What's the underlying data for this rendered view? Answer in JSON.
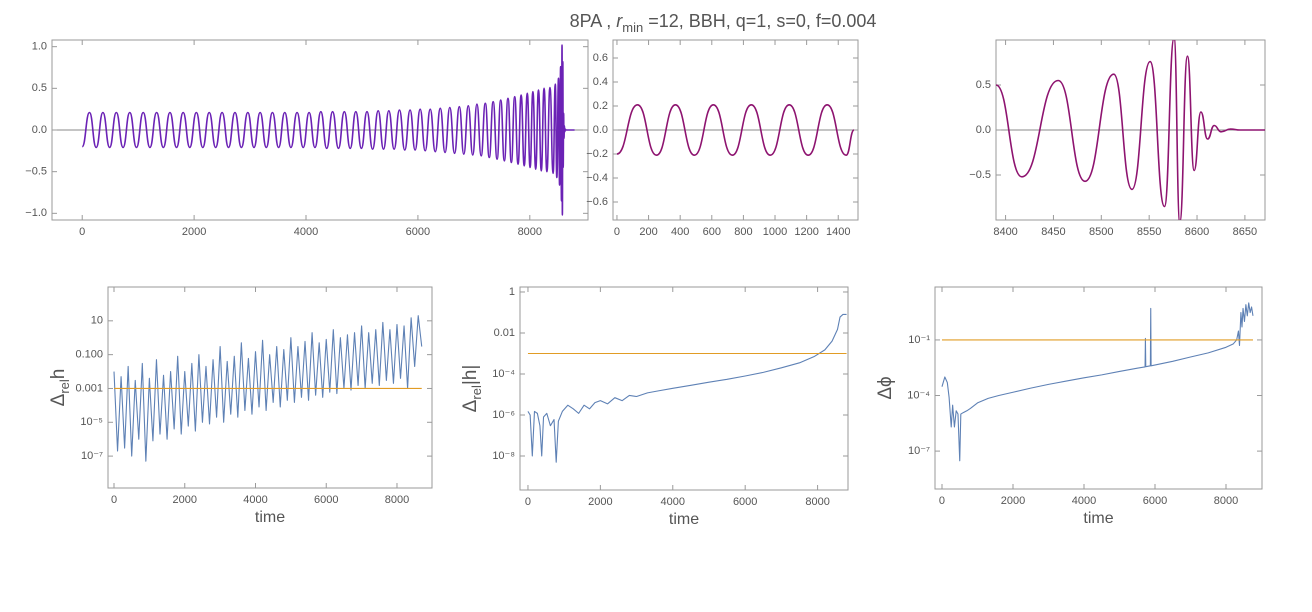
{
  "title": {
    "before": "8PA , ",
    "symbol": "r",
    "subscript": "min",
    "after": " =12, BBH, q=1, s=0, f=0.004"
  },
  "chart_data": [
    {
      "type": "line",
      "interpolation": "smooth",
      "xlim": [
        -540,
        9040
      ],
      "ylim": [
        -1.08,
        1.08
      ],
      "xticks": [
        0,
        2000,
        4000,
        6000,
        8000
      ],
      "yticks": [
        {
          "value": -1,
          "label": "−1.0"
        },
        {
          "value": -0.5,
          "label": "−0.5"
        },
        {
          "value": 0,
          "label": "0.0"
        },
        {
          "value": 0.5,
          "label": "0.5"
        },
        {
          "value": 1,
          "label": "1.0"
        }
      ],
      "series": [
        {
          "color": "#6b22b5",
          "x": [
            0,
            130,
            250,
            370,
            490,
            610,
            730,
            850,
            970,
            1090,
            1210,
            1330,
            1450,
            1568,
            1686,
            1804,
            1922,
            2040,
            2155,
            2270,
            2385,
            2500,
            2615,
            2730,
            2845,
            2960,
            3070,
            3180,
            3290,
            3400,
            3510,
            3620,
            3730,
            3840,
            3950,
            4055,
            4160,
            4265,
            4370,
            4475,
            4580,
            4685,
            4790,
            4890,
            4990,
            5090,
            5190,
            5290,
            5385,
            5480,
            5575,
            5670,
            5765,
            5860,
            5950,
            6040,
            6130,
            6220,
            6310,
            6400,
            6485,
            6570,
            6655,
            6740,
            6820,
            6900,
            6980,
            7055,
            7130,
            7205,
            7275,
            7345,
            7415,
            7480,
            7545,
            7610,
            7670,
            7730,
            7790,
            7845,
            7900,
            7955,
            8005,
            8055,
            8105,
            8155,
            8205,
            8255,
            8305,
            8360,
            8417,
            8455,
            8483,
            8513,
            8532,
            8551,
            8566,
            8576,
            8582,
            8590,
            8597,
            8604,
            8611,
            8618,
            8625,
            8635,
            8645,
            8800
          ],
          "values": [
            -0.2,
            0.21,
            -0.21,
            0.21,
            -0.21,
            0.21,
            -0.21,
            0.21,
            -0.21,
            0.21,
            -0.21,
            0.21,
            -0.21,
            0.21,
            -0.21,
            0.21,
            -0.21,
            0.21,
            -0.21,
            0.21,
            -0.21,
            0.21,
            -0.21,
            0.21,
            -0.21,
            0.21,
            -0.21,
            0.21,
            -0.21,
            0.21,
            -0.21,
            0.21,
            -0.21,
            0.21,
            -0.21,
            0.21,
            -0.21,
            0.22,
            -0.22,
            0.22,
            -0.22,
            0.22,
            -0.22,
            0.22,
            -0.22,
            0.22,
            -0.23,
            0.23,
            -0.23,
            0.23,
            -0.23,
            0.24,
            -0.24,
            0.24,
            -0.24,
            0.25,
            -0.25,
            0.25,
            -0.26,
            0.26,
            -0.27,
            0.27,
            -0.28,
            0.28,
            -0.29,
            0.29,
            -0.3,
            0.31,
            -0.31,
            0.32,
            -0.33,
            0.34,
            -0.35,
            0.36,
            -0.37,
            0.38,
            -0.39,
            0.4,
            -0.41,
            0.42,
            -0.43,
            0.44,
            -0.45,
            0.46,
            -0.47,
            0.48,
            -0.49,
            0.5,
            -0.5,
            0.51,
            -0.52,
            0.55,
            -0.57,
            0.62,
            -0.66,
            0.76,
            -0.85,
            1.02,
            -1.02,
            0.82,
            -0.45,
            0.2,
            -0.1,
            0.05,
            -0.02,
            0.01,
            0,
            0
          ]
        }
      ]
    },
    {
      "type": "line",
      "interpolation": "smooth",
      "xlim": [
        -25,
        1525
      ],
      "ylim": [
        -0.75,
        0.75
      ],
      "xticks": [
        0,
        200,
        400,
        600,
        800,
        1000,
        1200,
        1400
      ],
      "yticks": [
        {
          "value": -0.6,
          "label": "−0.6"
        },
        {
          "value": -0.4,
          "label": "−0.4"
        },
        {
          "value": -0.2,
          "label": "−0.2"
        },
        {
          "value": 0,
          "label": "0.0"
        },
        {
          "value": 0.2,
          "label": "0.2"
        },
        {
          "value": 0.4,
          "label": "0.4"
        },
        {
          "value": 0.6,
          "label": "0.6"
        }
      ],
      "series": [
        {
          "color": "#8e1470",
          "x": [
            0,
            130,
            250,
            370,
            490,
            610,
            730,
            850,
            970,
            1090,
            1210,
            1330,
            1450,
            1500
          ],
          "values": [
            -0.2,
            0.21,
            -0.21,
            0.21,
            -0.21,
            0.21,
            -0.21,
            0.21,
            -0.21,
            0.21,
            -0.21,
            0.21,
            -0.21,
            0
          ]
        }
      ]
    },
    {
      "type": "line",
      "interpolation": "smooth",
      "xlim": [
        8390,
        8671
      ],
      "ylim": [
        -1,
        1
      ],
      "xticks": [
        8400,
        8450,
        8500,
        8550,
        8600,
        8650
      ],
      "yticks": [
        {
          "value": -0.5,
          "label": "−0.5"
        },
        {
          "value": 0,
          "label": "0.0"
        },
        {
          "value": 0.5,
          "label": "0.5"
        }
      ],
      "series": [
        {
          "color": "#8e1470",
          "x": [
            8390,
            8417,
            8455,
            8483,
            8513,
            8532,
            8551,
            8566,
            8576,
            8582,
            8590,
            8597,
            8604,
            8611,
            8618,
            8625,
            8635,
            8645,
            8671
          ],
          "values": [
            0.5,
            -0.52,
            0.55,
            -0.57,
            0.62,
            -0.66,
            0.76,
            -0.85,
            1.02,
            -1.02,
            0.82,
            -0.45,
            0.2,
            -0.1,
            0.05,
            -0.02,
            0.01,
            0,
            0
          ]
        }
      ]
    },
    {
      "type": "line",
      "log_y": true,
      "xlabel": "time",
      "ylabel": {
        "symbol": "Δ",
        "subscript": "rel",
        "after": "h"
      },
      "xlim": [
        -170,
        8990
      ],
      "ylim": [
        1.3e-09,
        1000
      ],
      "xticks": [
        0,
        2000,
        4000,
        6000,
        8000
      ],
      "yticks": [
        10,
        {
          "value": 0.1,
          "label": "0.100"
        },
        0.001,
        {
          "value": 1e-05,
          "label": "10⁻⁵"
        },
        {
          "value": 1e-07,
          "label": "10⁻⁷"
        }
      ],
      "series": [
        {
          "color": "#5e81b5",
          "x": [
            0,
            100,
            200,
            300,
            400,
            500,
            600,
            700,
            800,
            900,
            1000,
            1100,
            1200,
            1300,
            1400,
            1500,
            1600,
            1700,
            1800,
            1900,
            2000,
            2100,
            2200,
            2300,
            2400,
            2500,
            2600,
            2700,
            2800,
            2900,
            3000,
            3100,
            3200,
            3300,
            3400,
            3500,
            3600,
            3700,
            3800,
            3900,
            4000,
            4100,
            4200,
            4300,
            4400,
            4500,
            4600,
            4700,
            4800,
            4900,
            5000,
            5100,
            5200,
            5300,
            5400,
            5500,
            5600,
            5700,
            5800,
            5900,
            6000,
            6100,
            6200,
            6300,
            6400,
            6500,
            6600,
            6700,
            6800,
            6900,
            7000,
            7100,
            7200,
            7300,
            7400,
            7500,
            7600,
            7700,
            7800,
            7900,
            8000,
            8100,
            8200,
            8300,
            8400,
            8500,
            8600,
            8700
          ],
          "values": [
            0.01,
            2e-07,
            0.005,
            3e-07,
            0.02,
            1e-07,
            0.003,
            1e-06,
            0.03,
            5e-08,
            0.004,
            8e-07,
            0.05,
            2e-06,
            0.006,
            1e-06,
            0.01,
            4e-06,
            0.08,
            2e-06,
            0.01,
            6e-06,
            0.03,
            3e-06,
            0.1,
            1e-05,
            0.02,
            8e-06,
            0.05,
            2e-05,
            0.3,
            1e-05,
            0.04,
            3e-05,
            0.08,
            2e-05,
            0.5,
            5e-05,
            0.06,
            3e-05,
            0.15,
            8e-05,
            0.7,
            5e-05,
            0.1,
            0.00015,
            0.3,
            8e-05,
            0.2,
            0.0002,
            1,
            0.00015,
            0.3,
            0.0003,
            0.6,
            0.0002,
            2,
            0.0004,
            0.5,
            0.0003,
            0.8,
            0.0006,
            3,
            0.0005,
            1,
            0.001,
            1.5,
            0.0008,
            2,
            0.0015,
            5,
            0.001,
            2,
            0.002,
            3,
            0.0015,
            8,
            0.003,
            3,
            0.002,
            6,
            0.004,
            5,
            0.001,
            15,
            0.02,
            20,
            0.3
          ]
        },
        {
          "color": "#e19c24",
          "x": [
            0,
            8700
          ],
          "values": [
            0.001,
            0.001
          ]
        }
      ]
    },
    {
      "type": "line",
      "log_y": true,
      "xlabel": "time",
      "ylabel": {
        "symbol": "Δ",
        "subscript": "rel",
        "after": "|h|"
      },
      "xlim": [
        -220,
        8840
      ],
      "ylim": [
        2.2e-10,
        1.75
      ],
      "xticks": [
        0,
        2000,
        4000,
        6000,
        8000
      ],
      "yticks": [
        1,
        0.01,
        {
          "value": 0.0001,
          "label": "10⁻⁴"
        },
        {
          "value": 1e-06,
          "label": "10⁻⁶"
        },
        {
          "value": 1e-08,
          "label": "10⁻⁸"
        }
      ],
      "series": [
        {
          "color": "#5e81b5",
          "x": [
            0,
            60,
            120,
            180,
            260,
            330,
            380,
            430,
            520,
            620,
            720,
            780,
            840,
            950,
            1100,
            1250,
            1400,
            1550,
            1700,
            1850,
            2000,
            2200,
            2400,
            2600,
            2800,
            3000,
            3300,
            3600,
            4000,
            4500,
            5000,
            5500,
            6000,
            6500,
            7000,
            7500,
            7900,
            8200,
            8400,
            8550,
            8620,
            8700,
            8800
          ],
          "values": [
            1.5e-06,
            1e-06,
            1e-08,
            1.5e-06,
            1.2e-06,
            3e-07,
            1e-08,
            8e-07,
            1.2e-06,
            3e-07,
            6e-07,
            5e-09,
            5e-07,
            1.5e-06,
            3e-06,
            2e-06,
            1.2e-06,
            3e-06,
            2e-06,
            4e-06,
            5e-06,
            3.5e-06,
            7e-06,
            5e-06,
            9e-06,
            8e-06,
            1.2e-05,
            1.5e-05,
            2e-05,
            2.8e-05,
            4e-05,
            5.5e-05,
            8e-05,
            0.00012,
            0.0002,
            0.00035,
            0.0007,
            0.0015,
            0.004,
            0.015,
            0.06,
            0.08,
            0.08
          ]
        },
        {
          "color": "#e19c24",
          "x": [
            0,
            8800
          ],
          "values": [
            0.001,
            0.001
          ]
        }
      ]
    },
    {
      "type": "line",
      "log_y": true,
      "xlabel": "time",
      "ylabel": "Δϕ",
      "xlim": [
        -197,
        9014
      ],
      "ylim": [
        9e-10,
        72
      ],
      "xticks": [
        0,
        2000,
        4000,
        6000,
        8000
      ],
      "yticks": [
        {
          "value": 0.1,
          "label": "10⁻¹"
        },
        {
          "value": 0.0001,
          "label": "10⁻⁴"
        },
        {
          "value": 1e-07,
          "label": "10⁻⁷"
        }
      ],
      "series": [
        {
          "color": "#5e81b5",
          "x": [
            0,
            80,
            150,
            200,
            260,
            300,
            350,
            400,
            450,
            500,
            530,
            600,
            700,
            800,
            1000,
            1300,
            1600,
            2000,
            2500,
            3000,
            3500,
            4000,
            4500,
            5000,
            5500,
            5720,
            5730,
            5740,
            5870,
            5880,
            5890,
            6500,
            7000,
            7500,
            8000,
            8200,
            8300,
            8350,
            8380,
            8420,
            8450,
            8480,
            8520,
            8560,
            8600,
            8640,
            8680,
            8720,
            8760
          ],
          "values": [
            0.0003,
            0.001,
            0.0005,
            8e-05,
            2e-06,
            3e-05,
            2e-06,
            1.5e-05,
            1e-05,
            3e-08,
            1e-05,
            1.2e-05,
            1.5e-05,
            2e-05,
            4e-05,
            7e-05,
            0.0001,
            0.00015,
            0.00025,
            0.0004,
            0.0006,
            0.0009,
            0.0013,
            0.002,
            0.003,
            0.0035,
            0.12,
            0.0036,
            0.004,
            5,
            0.004,
            0.007,
            0.012,
            0.02,
            0.04,
            0.06,
            0.1,
            0.3,
            0.05,
            3,
            0.5,
            5,
            1,
            8,
            2,
            10,
            3,
            6,
            2
          ]
        },
        {
          "color": "#e19c24",
          "x": [
            0,
            8760
          ],
          "values": [
            0.1,
            0.1
          ]
        }
      ]
    }
  ]
}
